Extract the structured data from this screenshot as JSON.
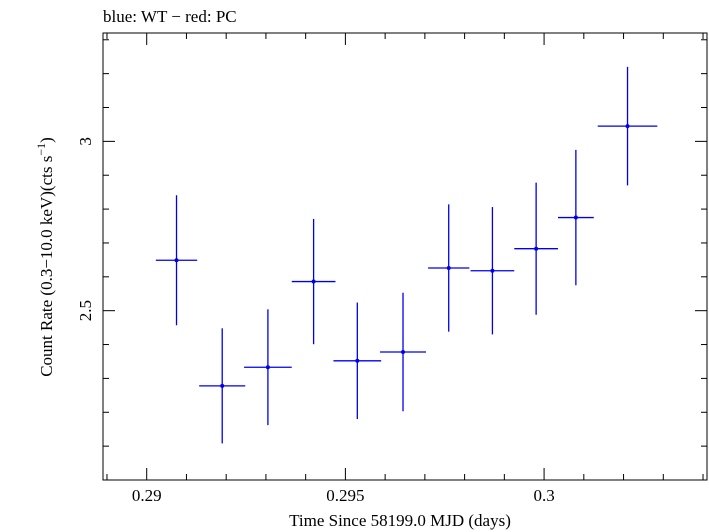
{
  "chart_data": {
    "type": "scatter",
    "title": "blue: WT − red: PC",
    "xlabel": "Time Since 58199.0 MJD (days)",
    "ylabel_main": "Count Rate (0.3−10.0 keV)(cts s",
    "ylabel_sup": "−1",
    "ylabel_close": ")",
    "xlim": [
      0.2889,
      0.3041
    ],
    "ylim": [
      2.0,
      3.32
    ],
    "x_ticks": [
      {
        "value": 0.29,
        "label": "0.29"
      },
      {
        "value": 0.295,
        "label": "0.295"
      },
      {
        "value": 0.3,
        "label": "0.3"
      }
    ],
    "x_minor_step": 0.001,
    "y_ticks": [
      {
        "value": 2.5,
        "label": "2.5"
      },
      {
        "value": 3.0,
        "label": "3"
      }
    ],
    "y_minor_step": 0.1,
    "series": [
      {
        "color": "#0000ee",
        "points": [
          {
            "x": 0.29075,
            "xerr": 0.00052,
            "y": 2.649,
            "yerr_low": 0.192,
            "yerr_high": 0.192
          },
          {
            "x": 0.2919,
            "xerr": 0.00058,
            "y": 2.278,
            "yerr_low": 0.17,
            "yerr_high": 0.17
          },
          {
            "x": 0.29305,
            "xerr": 0.0006,
            "y": 2.333,
            "yerr_low": 0.171,
            "yerr_high": 0.171
          },
          {
            "x": 0.2942,
            "xerr": 0.00055,
            "y": 2.586,
            "yerr_low": 0.185,
            "yerr_high": 0.185
          },
          {
            "x": 0.2953,
            "xerr": 0.0006,
            "y": 2.352,
            "yerr_low": 0.172,
            "yerr_high": 0.172
          },
          {
            "x": 0.29645,
            "xerr": 0.00058,
            "y": 2.378,
            "yerr_low": 0.175,
            "yerr_high": 0.175
          },
          {
            "x": 0.2976,
            "xerr": 0.00052,
            "y": 2.626,
            "yerr_low": 0.188,
            "yerr_high": 0.188
          },
          {
            "x": 0.2987,
            "xerr": 0.00055,
            "y": 2.618,
            "yerr_low": 0.188,
            "yerr_high": 0.188
          },
          {
            "x": 0.2998,
            "xerr": 0.00055,
            "y": 2.683,
            "yerr_low": 0.195,
            "yerr_high": 0.195
          },
          {
            "x": 0.3008,
            "xerr": 0.00045,
            "y": 2.775,
            "yerr_low": 0.2,
            "yerr_high": 0.2
          },
          {
            "x": 0.3021,
            "xerr": 0.00075,
            "y": 3.045,
            "yerr_low": 0.175,
            "yerr_high": 0.175
          }
        ]
      }
    ]
  }
}
